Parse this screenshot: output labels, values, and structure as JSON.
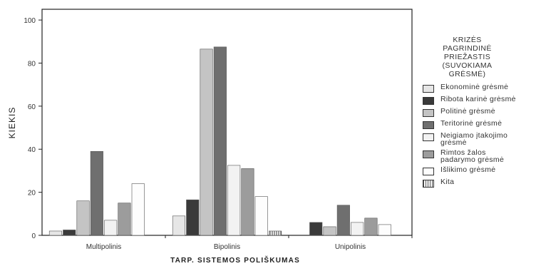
{
  "chart_data": {
    "type": "bar",
    "xlabel": "TARP. SISTEMOS POLIŠKUMAS",
    "ylabel": "KIEKIS",
    "ylim": [
      0,
      105
    ],
    "yticks": [
      0,
      20,
      40,
      60,
      80,
      100
    ],
    "grid": false,
    "categories": [
      "Multipolinis",
      "Bipolinis",
      "Unipolinis"
    ],
    "legend_title": "KRIZĖS\nPAGRINDINĖ\nPRIEŽASTIS\n(SUVOKIAMA\nGRĖSMĖ)",
    "legend_position": "right",
    "series": [
      {
        "name": "Ekonominė grėsmė",
        "color": "#e6e6e6",
        "values": [
          2,
          9,
          0
        ]
      },
      {
        "name": "Ribota karinė grėsmė",
        "color": "#3a3a3a",
        "values": [
          2.5,
          16.5,
          6
        ]
      },
      {
        "name": "Politinė grėsmė",
        "color": "#c4c4c4",
        "values": [
          16,
          86.5,
          4
        ]
      },
      {
        "name": "Teritorinė grėsmė",
        "color": "#6f6f6f",
        "values": [
          39,
          87.5,
          14
        ]
      },
      {
        "name": "Neigiamo įtakojimo grėsmė",
        "color": "#f2f2f2",
        "values": [
          7,
          32.5,
          6
        ]
      },
      {
        "name": "Rimtos žalos padarymo grėsmė",
        "color": "#9c9c9c",
        "values": [
          15,
          31,
          8
        ]
      },
      {
        "name": "Išlikimo grėsmė",
        "color": "#fdfdfd",
        "values": [
          24,
          18,
          5
        ]
      },
      {
        "name": "Kita",
        "color": "#bdbdbd",
        "pattern": "vertical-lines",
        "values": [
          0,
          2,
          0
        ]
      }
    ]
  }
}
